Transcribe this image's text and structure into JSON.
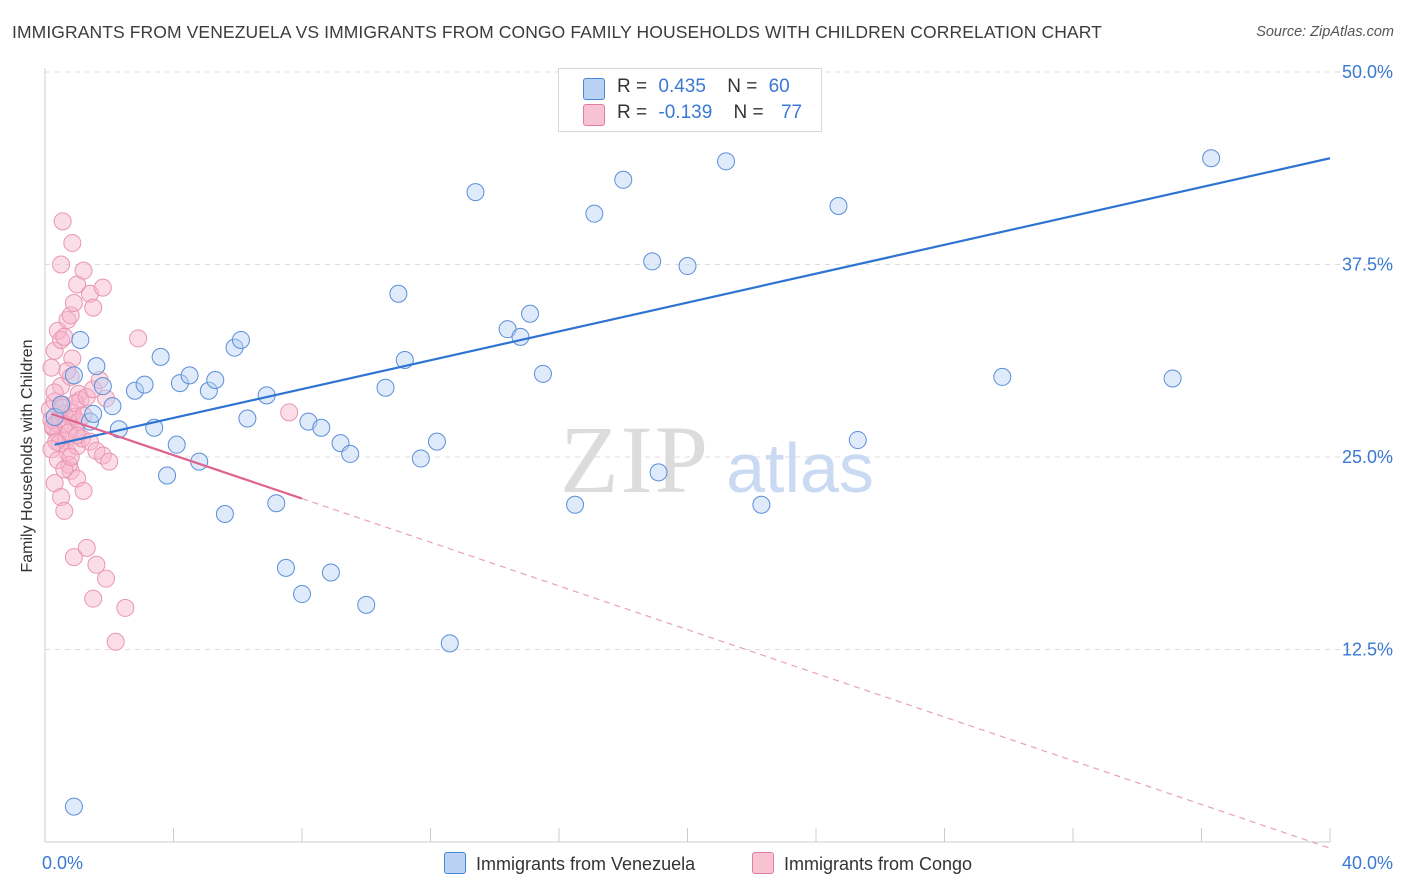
{
  "title": "IMMIGRANTS FROM VENEZUELA VS IMMIGRANTS FROM CONGO FAMILY HOUSEHOLDS WITH CHILDREN CORRELATION CHART",
  "source": "Source: ZipAtlas.com",
  "watermark": {
    "zip": "ZIP",
    "atlas": "atlas"
  },
  "legend": {
    "venezuela": {
      "r_label": "R =",
      "r_value": "0.435",
      "n_label": "N =",
      "n_value": "60",
      "color": "#4a86d8",
      "fill": "#b9d1f3"
    },
    "congo": {
      "r_label": "R =",
      "r_value": "-0.139",
      "n_label": "N =",
      "n_value": "77",
      "color": "#e07ea0",
      "fill": "#f7c3d3"
    }
  },
  "bottom_legend": {
    "venezuela": "Immigrants from Venezuela",
    "congo": "Immigrants from Congo"
  },
  "chart_data": {
    "type": "scatter",
    "title": "IMMIGRANTS FROM VENEZUELA VS IMMIGRANTS FROM CONGO FAMILY HOUSEHOLDS WITH CHILDREN CORRELATION CHART",
    "xlabel": "",
    "ylabel": "Family Households with Children",
    "xlim": [
      0,
      40
    ],
    "ylim": [
      0,
      50
    ],
    "x_tick_labels": [
      "0.0%",
      "40.0%"
    ],
    "y_tick_labels": [
      "12.5%",
      "25.0%",
      "37.5%",
      "50.0%"
    ],
    "y_ticks": [
      12.5,
      25.0,
      37.5,
      50.0
    ],
    "series": [
      {
        "name": "Immigrants from Venezuela",
        "color": "#4a86d8",
        "trend": {
          "x": [
            0.3,
            40
          ],
          "y": [
            25.8,
            44.4
          ]
        },
        "points": [
          [
            0.3,
            27.6
          ],
          [
            0.5,
            28.4
          ],
          [
            0.9,
            30.3
          ],
          [
            1.1,
            32.6
          ],
          [
            1.4,
            27.3
          ],
          [
            1.5,
            27.8
          ],
          [
            1.6,
            30.9
          ],
          [
            1.8,
            29.6
          ],
          [
            2.1,
            28.3
          ],
          [
            2.3,
            26.8
          ],
          [
            2.8,
            29.3
          ],
          [
            3.1,
            29.7
          ],
          [
            3.4,
            26.9
          ],
          [
            3.6,
            31.5
          ],
          [
            3.8,
            23.8
          ],
          [
            4.1,
            25.8
          ],
          [
            4.2,
            29.8
          ],
          [
            4.5,
            30.3
          ],
          [
            4.8,
            24.7
          ],
          [
            5.1,
            29.3
          ],
          [
            5.3,
            30.0
          ],
          [
            5.6,
            21.3
          ],
          [
            5.9,
            32.1
          ],
          [
            6.1,
            32.6
          ],
          [
            6.3,
            27.5
          ],
          [
            6.9,
            29.0
          ],
          [
            7.2,
            22.0
          ],
          [
            7.5,
            17.8
          ],
          [
            8.0,
            16.1
          ],
          [
            8.2,
            27.3
          ],
          [
            8.6,
            26.9
          ],
          [
            8.9,
            17.5
          ],
          [
            9.2,
            25.9
          ],
          [
            9.5,
            25.2
          ],
          [
            10.0,
            15.4
          ],
          [
            10.6,
            29.5
          ],
          [
            11.0,
            35.6
          ],
          [
            11.2,
            31.3
          ],
          [
            11.7,
            24.9
          ],
          [
            12.6,
            12.9
          ],
          [
            12.2,
            26.0
          ],
          [
            13.4,
            42.2
          ],
          [
            14.4,
            33.3
          ],
          [
            14.8,
            32.8
          ],
          [
            15.1,
            34.3
          ],
          [
            15.5,
            30.4
          ],
          [
            16.5,
            21.9
          ],
          [
            17.1,
            40.8
          ],
          [
            18.0,
            43.0
          ],
          [
            18.9,
            37.7
          ],
          [
            19.1,
            24.0
          ],
          [
            20.0,
            37.4
          ],
          [
            21.2,
            44.2
          ],
          [
            22.3,
            21.9
          ],
          [
            24.7,
            41.3
          ],
          [
            25.3,
            26.1
          ],
          [
            29.8,
            30.2
          ],
          [
            35.1,
            30.1
          ],
          [
            36.3,
            44.4
          ],
          [
            0.9,
            2.3
          ]
        ]
      },
      {
        "name": "Immigrants from Congo",
        "color": "#e07ea0",
        "trend": {
          "x": [
            0.2,
            8.0
          ],
          "y": [
            27.8,
            22.3
          ]
        },
        "trend_ext": {
          "x": [
            8.0,
            40
          ],
          "y": [
            22.3,
            -0.4
          ]
        },
        "points": [
          [
            0.15,
            28.1
          ],
          [
            0.2,
            27.4
          ],
          [
            0.25,
            26.9
          ],
          [
            0.3,
            28.6
          ],
          [
            0.35,
            27.2
          ],
          [
            0.4,
            26.5
          ],
          [
            0.45,
            25.9
          ],
          [
            0.5,
            29.6
          ],
          [
            0.55,
            28.4
          ],
          [
            0.6,
            27.8
          ],
          [
            0.65,
            26.1
          ],
          [
            0.7,
            25.3
          ],
          [
            0.75,
            24.5
          ],
          [
            0.8,
            30.2
          ],
          [
            0.85,
            31.4
          ],
          [
            0.9,
            27.6
          ],
          [
            0.95,
            26.8
          ],
          [
            1.0,
            25.7
          ],
          [
            1.05,
            29.1
          ],
          [
            1.1,
            28.7
          ],
          [
            0.2,
            30.8
          ],
          [
            0.3,
            31.9
          ],
          [
            0.4,
            33.2
          ],
          [
            0.5,
            32.6
          ],
          [
            0.6,
            32.8
          ],
          [
            0.7,
            33.9
          ],
          [
            0.8,
            34.2
          ],
          [
            0.9,
            35.0
          ],
          [
            1.0,
            36.2
          ],
          [
            0.5,
            37.5
          ],
          [
            0.55,
            40.3
          ],
          [
            0.85,
            38.9
          ],
          [
            1.2,
            37.1
          ],
          [
            1.4,
            35.6
          ],
          [
            1.5,
            34.7
          ],
          [
            1.8,
            36.0
          ],
          [
            2.9,
            32.7
          ],
          [
            0.3,
            23.3
          ],
          [
            0.5,
            22.4
          ],
          [
            0.6,
            21.5
          ],
          [
            0.8,
            24.1
          ],
          [
            1.0,
            23.6
          ],
          [
            1.2,
            22.8
          ],
          [
            0.9,
            18.5
          ],
          [
            1.3,
            19.1
          ],
          [
            1.6,
            18.0
          ],
          [
            1.9,
            17.1
          ],
          [
            1.5,
            15.8
          ],
          [
            2.5,
            15.2
          ],
          [
            2.2,
            13.0
          ],
          [
            0.25,
            27.0
          ],
          [
            0.35,
            26.0
          ],
          [
            0.45,
            27.5
          ],
          [
            0.55,
            28.2
          ],
          [
            0.65,
            27.1
          ],
          [
            0.75,
            26.6
          ],
          [
            0.85,
            27.9
          ],
          [
            0.95,
            28.5
          ],
          [
            1.05,
            27.3
          ],
          [
            1.15,
            26.2
          ],
          [
            0.2,
            25.5
          ],
          [
            0.4,
            24.8
          ],
          [
            0.6,
            24.2
          ],
          [
            0.8,
            25.0
          ],
          [
            1.0,
            26.4
          ],
          [
            1.2,
            27.7
          ],
          [
            1.4,
            26.0
          ],
          [
            1.6,
            25.4
          ],
          [
            1.8,
            25.1
          ],
          [
            2.0,
            24.7
          ],
          [
            1.3,
            28.9
          ],
          [
            1.5,
            29.4
          ],
          [
            1.7,
            30.0
          ],
          [
            1.9,
            28.8
          ],
          [
            7.6,
            27.9
          ],
          [
            0.3,
            29.2
          ],
          [
            0.7,
            30.6
          ]
        ]
      }
    ]
  }
}
